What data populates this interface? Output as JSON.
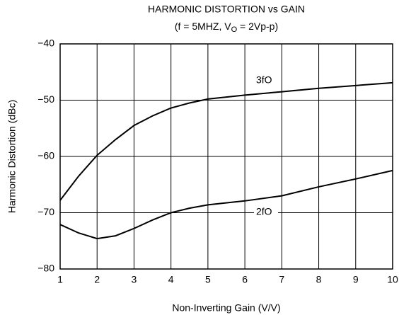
{
  "chart_data": {
    "type": "line",
    "title": "HARMONIC DISTORTION vs GAIN",
    "subtitle": [
      "(f = 5MHZ, V",
      "O",
      " = 2Vp-p)"
    ],
    "xlabel": "Non-Inverting Gain (V/V)",
    "ylabel": "Harmonic Distortion (dBc)",
    "x": [
      1,
      1.5,
      2,
      2.5,
      3,
      3.5,
      4,
      4.5,
      5,
      6,
      7,
      8,
      9,
      10
    ],
    "series": [
      {
        "name": "3fO",
        "color": "#000000",
        "values": [
          -67.8,
          -63.5,
          -59.8,
          -57,
          -54.5,
          -52.8,
          -51.4,
          -50.5,
          -49.8,
          -49.1,
          -48.5,
          -47.9,
          -47.4,
          -46.9
        ]
      },
      {
        "name": "2fO",
        "color": "#000000",
        "values": [
          -72.1,
          -73.6,
          -74.6,
          -74.1,
          -72.8,
          -71.3,
          -70,
          -69.2,
          -68.6,
          -67.9,
          -67,
          -65.4,
          -64,
          -62.5
        ]
      }
    ],
    "xlim": [
      1,
      10
    ],
    "xticks": [
      1,
      2,
      3,
      4,
      5,
      6,
      7,
      8,
      9,
      10
    ],
    "ylim": [
      -80,
      -40
    ],
    "yticks": [
      {
        "value": -80,
        "label": "−80"
      },
      {
        "value": -70,
        "label": "−70"
      },
      {
        "value": -60,
        "label": "−60"
      },
      {
        "value": -50,
        "label": "−50"
      },
      {
        "value": -40,
        "label": "−40"
      }
    ],
    "grid": true
  }
}
